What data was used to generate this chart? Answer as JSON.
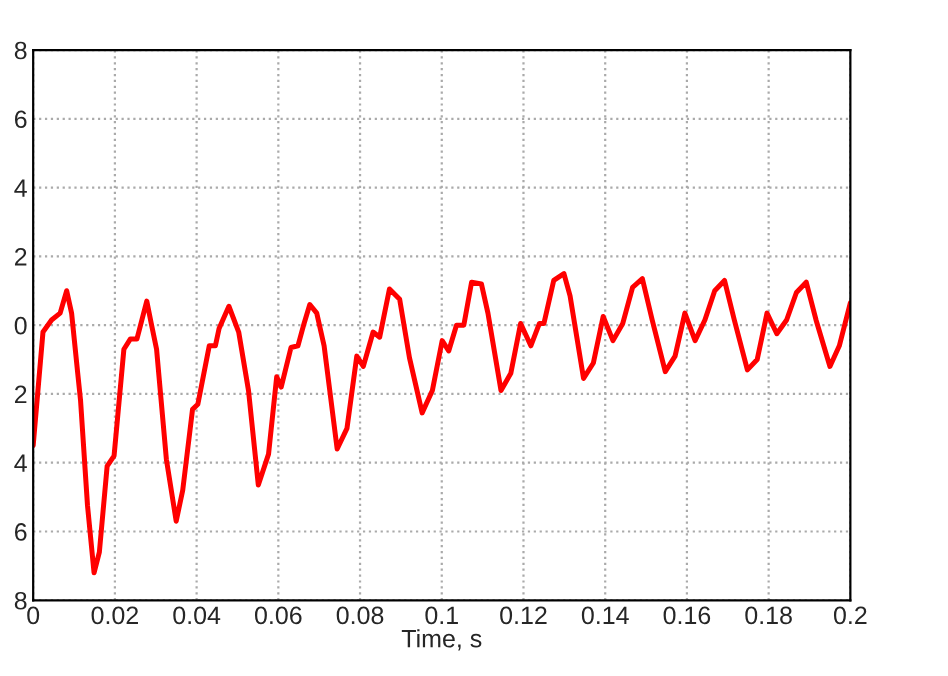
{
  "chart_data": {
    "type": "line",
    "xlabel": "Time, s",
    "x": [
      0,
      0.0024,
      0.0045,
      0.0066,
      0.0082,
      0.0094,
      0.0109,
      0.0116,
      0.0133,
      0.0149,
      0.0162,
      0.0181,
      0.0198,
      0.0222,
      0.0238,
      0.0254,
      0.0265,
      0.0278,
      0.0289,
      0.0302,
      0.0326,
      0.035,
      0.0366,
      0.039,
      0.0403,
      0.0431,
      0.0446,
      0.0455,
      0.0479,
      0.0503,
      0.0527,
      0.0551,
      0.0576,
      0.0596,
      0.0607,
      0.0631,
      0.0648,
      0.0663,
      0.0677,
      0.0694,
      0.0712,
      0.0744,
      0.0768,
      0.0792,
      0.0808,
      0.0832,
      0.0848,
      0.0872,
      0.0897,
      0.0921,
      0.0952,
      0.0977,
      0.1001,
      0.1017,
      0.1036,
      0.1054,
      0.1073,
      0.1097,
      0.1113,
      0.1145,
      0.1169,
      0.1193,
      0.1218,
      0.1239,
      0.125,
      0.1274,
      0.1299,
      0.1314,
      0.1347,
      0.1371,
      0.1395,
      0.1419,
      0.1443,
      0.1467,
      0.1491,
      0.1515,
      0.1547,
      0.1571,
      0.1595,
      0.162,
      0.1644,
      0.1668,
      0.1692,
      0.1716,
      0.1748,
      0.1772,
      0.1796,
      0.182,
      0.1844,
      0.1868,
      0.1892,
      0.1916,
      0.195,
      0.1973,
      0.2
    ],
    "series": [
      {
        "color": "#ff0000",
        "values": [
          -3.5,
          -0.2,
          0.15,
          0.35,
          1.0,
          0.35,
          -1.4,
          -2.2,
          -5.25,
          -7.2,
          -6.6,
          -4.1,
          -3.8,
          -0.7,
          -0.4,
          -0.4,
          0.1,
          0.7,
          0.05,
          -0.7,
          -3.9,
          -5.7,
          -4.8,
          -2.45,
          -2.3,
          -0.6,
          -0.6,
          -0.1,
          0.55,
          -0.2,
          -1.9,
          -4.65,
          -3.75,
          -1.5,
          -1.8,
          -0.65,
          -0.6,
          0.05,
          0.6,
          0.35,
          -0.6,
          -3.6,
          -3.0,
          -0.9,
          -1.2,
          -0.2,
          -0.35,
          1.05,
          0.75,
          -0.95,
          -2.55,
          -1.9,
          -0.45,
          -0.75,
          0.0,
          0.0,
          1.25,
          1.2,
          0.35,
          -1.9,
          -1.4,
          0.05,
          -0.6,
          0.05,
          0.05,
          1.3,
          1.5,
          0.85,
          -1.55,
          -1.1,
          0.25,
          -0.45,
          0.05,
          1.1,
          1.35,
          0.15,
          -1.35,
          -0.9,
          0.35,
          -0.45,
          0.15,
          1.0,
          1.3,
          0.15,
          -1.3,
          -1.0,
          0.35,
          -0.25,
          0.15,
          0.95,
          1.25,
          0.15,
          -1.2,
          -0.6,
          0.65
        ]
      }
    ],
    "xlim": [
      0,
      0.2
    ],
    "xticks": [
      0,
      0.02,
      0.04,
      0.06,
      0.08,
      {
        "value": 0.1,
        "label": "0.1"
      },
      0.12,
      0.14,
      0.16,
      0.18,
      {
        "value": 0.2,
        "label": "0.2"
      }
    ],
    "ylim": [
      -8,
      8
    ],
    "yticks": [
      {
        "value": -8,
        "label": "8"
      },
      {
        "value": -6,
        "label": "6"
      },
      {
        "value": -4,
        "label": "4"
      },
      {
        "value": -2,
        "label": "2"
      },
      0,
      2,
      4,
      6,
      8
    ],
    "grid": true,
    "line_style": "solid",
    "marker": "none"
  }
}
